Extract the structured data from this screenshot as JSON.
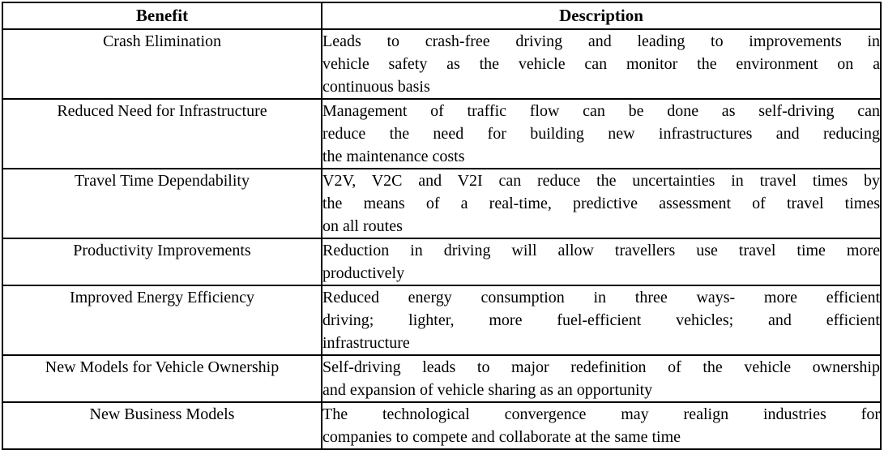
{
  "colors": {
    "border": "#000000",
    "text": "#000000",
    "background": "#ffffff"
  },
  "table": {
    "headers": {
      "benefit": "Benefit",
      "description": "Description"
    },
    "rows": [
      {
        "benefit": "Crash Elimination",
        "description": "Leads to crash-free driving and leading to improvements in vehicle safety as the vehicle can monitor the environment on a continuous basis",
        "description_lines": [
          "Leads to crash-free driving and leading to improvements in",
          "vehicle safety as the vehicle can monitor the environment on a",
          "continuous basis"
        ]
      },
      {
        "benefit": "Reduced Need for Infrastructure",
        "description": "Management of traffic flow can be done as self-driving can reduce the need for building new infrastructures and reducing the maintenance costs",
        "description_lines": [
          "Management of traffic flow can be done as self-driving can",
          "reduce the need for building new infrastructures and reducing",
          "the maintenance costs"
        ]
      },
      {
        "benefit": "Travel Time Dependability",
        "description": "V2V, V2C and V2I can reduce the uncertainties in travel times by the means of a real-time, predictive assessment of travel times on all routes",
        "description_lines": [
          "V2V, V2C and V2I can reduce the uncertainties in travel times by",
          "the means of a real-time, predictive assessment of travel times",
          "on all routes"
        ]
      },
      {
        "benefit": "Productivity Improvements",
        "description": "Reduction in driving will allow travellers use travel time more productively",
        "description_lines": [
          "Reduction in driving will allow travellers use travel time more",
          "productively"
        ]
      },
      {
        "benefit": "Improved Energy Efficiency",
        "description": "Reduced energy consumption in three ways- more efficient driving; lighter, more fuel-efficient vehicles; and efficient infrastructure",
        "description_lines": [
          "Reduced energy consumption in three ways- more efficient",
          "driving; lighter, more fuel-efficient vehicles; and efficient",
          "infrastructure"
        ]
      },
      {
        "benefit": "New Models for Vehicle Ownership",
        "description": "Self-driving leads to major redefinition of the vehicle ownership and expansion of vehicle sharing as an opportunity",
        "description_lines": [
          "Self-driving leads to major redefinition of the vehicle ownership",
          "and expansion of vehicle sharing as an opportunity"
        ]
      },
      {
        "benefit": "New Business Models",
        "description": "The technological convergence may realign industries for companies to compete and collaborate at the same time",
        "description_lines": [
          "The technological convergence may realign industries for",
          "companies to compete and collaborate at the same time"
        ]
      }
    ]
  }
}
